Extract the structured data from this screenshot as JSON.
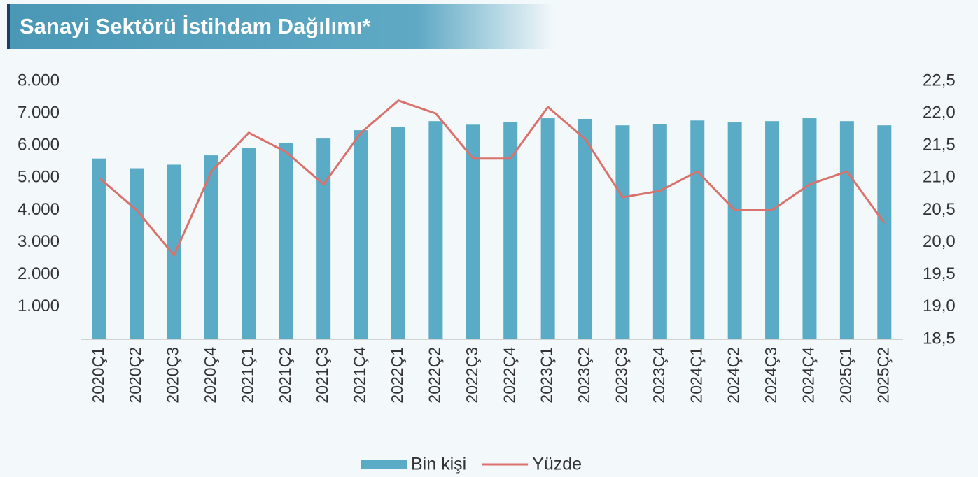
{
  "chart_data": {
    "type": "bar-line",
    "title": "Sanayi Sektörü İstihdam Dağılımı*",
    "categories": [
      "2020Ç1",
      "2020Ç2",
      "2020Ç3",
      "2020Ç4",
      "2021Ç1",
      "2021Ç2",
      "2021Ç3",
      "2021Ç4",
      "2022Ç1",
      "2022Ç2",
      "2022Ç3",
      "2022Ç4",
      "2023Ç1",
      "2023Ç2",
      "2023Ç3",
      "2023Ç4",
      "2024Ç1",
      "2024Ç2",
      "2024Ç3",
      "2024Ç4",
      "2025Ç1",
      "2025Ç2"
    ],
    "series": [
      {
        "name": "Bin kişi",
        "type": "bar",
        "color": "#5aabc6",
        "values": [
          5600,
          5300,
          5410,
          5700,
          5930,
          6090,
          6220,
          6480,
          6570,
          6760,
          6650,
          6740,
          6850,
          6830,
          6630,
          6670,
          6780,
          6720,
          6760,
          6850,
          6760,
          6630
        ]
      },
      {
        "name": "Yüzde",
        "type": "line",
        "axis": "y2",
        "color": "#d9726c",
        "values": [
          21.0,
          20.5,
          19.8,
          21.1,
          21.7,
          21.4,
          20.9,
          21.7,
          22.2,
          22.0,
          21.3,
          21.3,
          22.1,
          21.6,
          20.7,
          20.8,
          21.1,
          20.5,
          20.5,
          20.9,
          21.1,
          20.3
        ]
      }
    ],
    "ylim": [
      0,
      8000
    ],
    "yticks": [
      {
        "value": 1000,
        "label": "1.000"
      },
      {
        "value": 2000,
        "label": "2.000"
      },
      {
        "value": 3000,
        "label": "3.000"
      },
      {
        "value": 4000,
        "label": "4.000"
      },
      {
        "value": 5000,
        "label": "5.000"
      },
      {
        "value": 6000,
        "label": "6.000"
      },
      {
        "value": 7000,
        "label": "7.000"
      },
      {
        "value": 8000,
        "label": "8.000"
      }
    ],
    "y2lim": [
      18.5,
      22.5
    ],
    "y2ticks": [
      {
        "value": 18.5,
        "label": "18,5"
      },
      {
        "value": 19,
        "label": "19,0"
      },
      {
        "value": 19.5,
        "label": "19,5"
      },
      {
        "value": 20,
        "label": "20,0"
      },
      {
        "value": 20.5,
        "label": "20,5"
      },
      {
        "value": 21,
        "label": "21,0"
      },
      {
        "value": 21.5,
        "label": "21,5"
      },
      {
        "value": 22,
        "label": "22,0"
      },
      {
        "value": 22.5,
        "label": "22,5"
      }
    ],
    "legend": "bottom",
    "grid": false
  }
}
